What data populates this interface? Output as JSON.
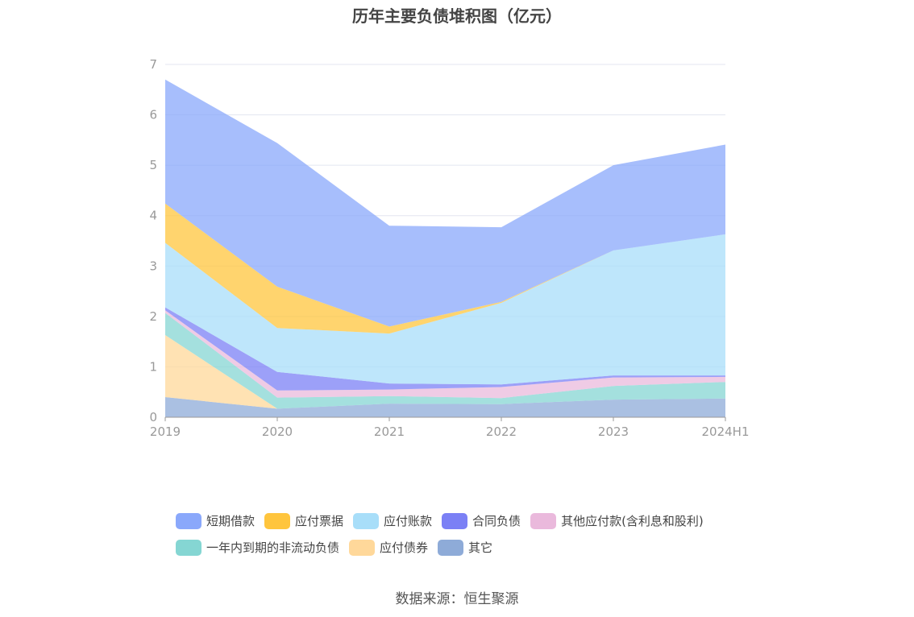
{
  "title": "历年主要负债堆积图（亿元）",
  "source": "数据来源：恒生聚源",
  "chart_data": {
    "type": "area",
    "stacked": true,
    "x": [
      "2019",
      "2020",
      "2021",
      "2022",
      "2023",
      "2024H1"
    ],
    "ylim": [
      0,
      7
    ],
    "yticks": [
      "0",
      "1",
      "2",
      "3",
      "4",
      "5",
      "6",
      "7"
    ],
    "grid": true,
    "legend_position": "bottom",
    "series": [
      {
        "name": "其它",
        "color": "#8eabd8",
        "values": [
          0.4,
          0.17,
          0.27,
          0.26,
          0.35,
          0.37
        ]
      },
      {
        "name": "应付债券",
        "color": "#ffd89a",
        "values": [
          1.23,
          0.0,
          0.0,
          0.0,
          0.0,
          0.0
        ]
      },
      {
        "name": "一年内到期的非流动负债",
        "color": "#85d6d3",
        "values": [
          0.44,
          0.22,
          0.15,
          0.12,
          0.27,
          0.33
        ]
      },
      {
        "name": "其他应付款(含利息和股利)",
        "color": "#eab9dc",
        "values": [
          0.05,
          0.14,
          0.13,
          0.22,
          0.17,
          0.1
        ]
      },
      {
        "name": "合同负债",
        "color": "#7b80f5",
        "values": [
          0.06,
          0.37,
          0.12,
          0.05,
          0.04,
          0.03
        ]
      },
      {
        "name": "应付账款",
        "color": "#a8def9",
        "values": [
          1.28,
          0.87,
          0.99,
          1.62,
          2.48,
          2.8
        ]
      },
      {
        "name": "应付票据",
        "color": "#ffc53d",
        "values": [
          0.78,
          0.82,
          0.14,
          0.02,
          0.0,
          0.0
        ]
      },
      {
        "name": "短期借款",
        "color": "#8aa8fb",
        "values": [
          2.46,
          2.85,
          2.0,
          1.48,
          1.69,
          1.78
        ]
      }
    ],
    "legend_order": [
      "短期借款",
      "应付票据",
      "应付账款",
      "合同负债",
      "其他应付款(含利息和股利)",
      "一年内到期的非流动负债",
      "应付债券",
      "其它"
    ]
  }
}
